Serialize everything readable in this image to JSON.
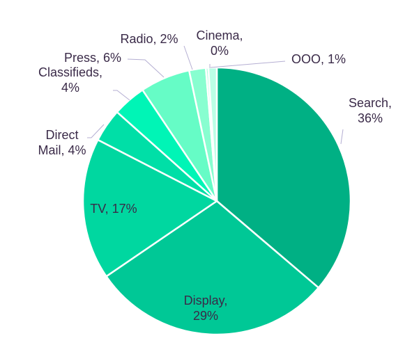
{
  "chart_data": {
    "type": "pie",
    "title": "",
    "slices": [
      {
        "label": "Search",
        "value": 36,
        "value_label": "36%",
        "color": "#00b084"
      },
      {
        "label": "Display",
        "value": 29,
        "value_label": "29%",
        "color": "#00c896"
      },
      {
        "label": "TV",
        "value": 17,
        "value_label": "17%",
        "color": "#00d7a0"
      },
      {
        "label": "Direct Mail",
        "value": 4,
        "value_label": "4%",
        "color": "#00dfa7"
      },
      {
        "label": "Classifieds",
        "value": 4,
        "value_label": "4%",
        "color": "#00f5b6"
      },
      {
        "label": "Press",
        "value": 6,
        "value_label": "6%",
        "color": "#66fcc6"
      },
      {
        "label": "Radio",
        "value": 2,
        "value_label": "2%",
        "color": "#88fed0"
      },
      {
        "label": "Cinema",
        "value": 0.3,
        "value_label": "0%",
        "color": "#aaffdc"
      },
      {
        "label": "OOO",
        "value": 1,
        "value_label": "1%",
        "color": "#bbffe6"
      }
    ],
    "label_text": [
      [
        "Search,",
        "36%"
      ],
      [
        "Display,",
        "29%"
      ],
      [
        "TV, 17%"
      ],
      [
        "Direct",
        "Mail, 4%"
      ],
      [
        "Classifieds,",
        "4%"
      ],
      [
        "Press, 6%"
      ],
      [
        "Radio, 2%"
      ],
      [
        "Cinema,",
        "0%"
      ],
      [
        "OOO, 1%"
      ]
    ],
    "start": "12 o'clock",
    "direction": "clockwise",
    "legend": "none"
  }
}
